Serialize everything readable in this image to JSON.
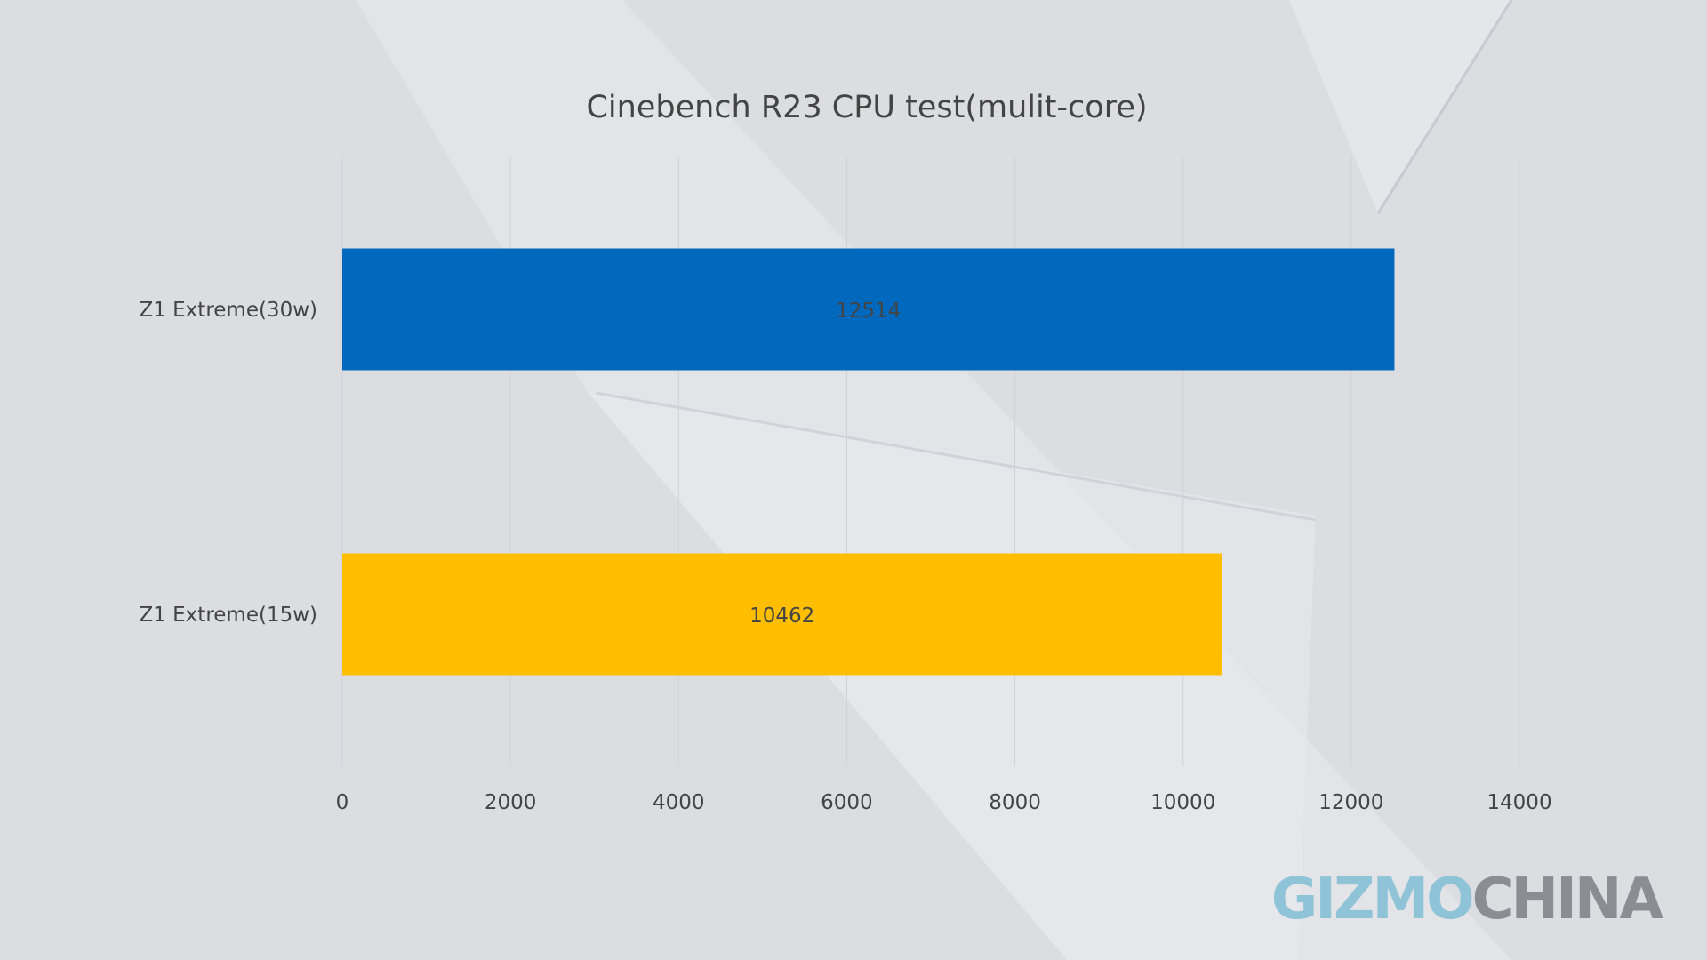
{
  "colors": {
    "background": "#dcdde1",
    "bar_30w": "#0068bd",
    "bar_15w": "#ffbf00",
    "text": "#444444",
    "grid": "#d0d1d6",
    "watermark_gizmo": "#8fc3d8",
    "watermark_china": "#8a8d91"
  },
  "watermark": {
    "part1": "GIZMO",
    "part2": "CHINA"
  },
  "chart_data": {
    "type": "bar",
    "orientation": "horizontal",
    "title": "Cinebench R23 CPU test(mulit-core)",
    "categories": [
      "Z1 Extreme(30w)",
      "Z1 Extreme(15w)"
    ],
    "values": [
      12514,
      10462
    ],
    "value_labels": [
      "12514",
      "10462"
    ],
    "xlim": [
      0,
      14000
    ],
    "xticks": [
      0,
      2000,
      4000,
      6000,
      8000,
      10000,
      12000,
      14000
    ],
    "xtick_labels": [
      "0",
      "2000",
      "4000",
      "6000",
      "8000",
      "10000",
      "12000",
      "14000"
    ],
    "grid": true,
    "legend": "none"
  }
}
